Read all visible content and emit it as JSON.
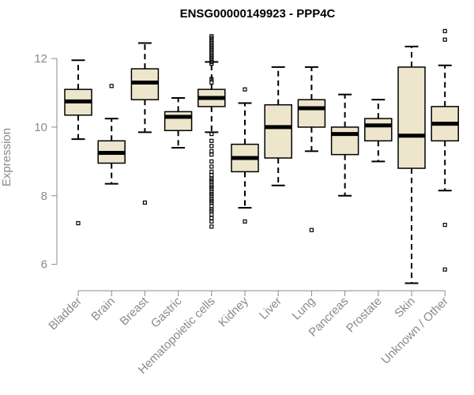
{
  "chart_data": {
    "type": "boxplot",
    "title": "ENSG00000149923 - PPP4C",
    "ylabel": "Expression",
    "xlabel": "",
    "ylim": [
      5.3,
      12.9
    ],
    "yticks": [
      6,
      8,
      10,
      12
    ],
    "box_fill": "#ede6cc",
    "box_stroke": "#000000",
    "axis_color": "#8a8a8a",
    "categories": [
      "Bladder",
      "Brain",
      "Breast",
      "Gastric",
      "Hematopoietic cells",
      "Kidney",
      "Liver",
      "Lung",
      "Pancreas",
      "Prostate",
      "Skin",
      "Unknown / Other"
    ],
    "boxes": [
      {
        "whisker_low": 9.65,
        "q1": 10.35,
        "median": 10.75,
        "q3": 11.1,
        "whisker_high": 11.95,
        "outliers": [
          7.2
        ]
      },
      {
        "whisker_low": 8.35,
        "q1": 8.95,
        "median": 9.25,
        "q3": 9.6,
        "whisker_high": 10.25,
        "outliers": [
          11.2
        ]
      },
      {
        "whisker_low": 9.85,
        "q1": 10.8,
        "median": 11.3,
        "q3": 11.7,
        "whisker_high": 12.45,
        "outliers": [
          7.8
        ]
      },
      {
        "whisker_low": 9.4,
        "q1": 9.9,
        "median": 10.3,
        "q3": 10.45,
        "whisker_high": 10.85,
        "outliers": []
      },
      {
        "whisker_low": 9.85,
        "q1": 10.6,
        "median": 10.85,
        "q3": 11.1,
        "whisker_high": 11.9,
        "outliers": [
          12.65,
          12.6,
          12.55,
          12.5,
          12.45,
          12.4,
          12.35,
          12.3,
          12.25,
          12.2,
          12.15,
          12.1,
          12.05,
          12.0,
          11.95,
          11.9,
          11.85,
          11.4,
          11.3,
          9.8,
          9.6,
          9.45,
          9.3,
          9.2,
          9.0,
          8.85,
          8.7,
          8.6,
          8.5,
          8.45,
          8.4,
          8.3,
          8.25,
          8.2,
          8.1,
          8.05,
          8.0,
          7.9,
          7.85,
          7.8,
          7.7,
          7.6,
          7.55,
          7.45,
          7.35,
          7.25,
          7.1
        ]
      },
      {
        "whisker_low": 7.65,
        "q1": 8.7,
        "median": 9.1,
        "q3": 9.5,
        "whisker_high": 10.7,
        "outliers": [
          11.1,
          7.25
        ]
      },
      {
        "whisker_low": 8.3,
        "q1": 9.1,
        "median": 10.0,
        "q3": 10.65,
        "whisker_high": 11.75,
        "outliers": []
      },
      {
        "whisker_low": 9.3,
        "q1": 10.0,
        "median": 10.55,
        "q3": 10.8,
        "whisker_high": 11.75,
        "outliers": [
          7.0
        ]
      },
      {
        "whisker_low": 8.0,
        "q1": 9.2,
        "median": 9.8,
        "q3": 10.0,
        "whisker_high": 10.95,
        "outliers": []
      },
      {
        "whisker_low": 9.0,
        "q1": 9.6,
        "median": 10.05,
        "q3": 10.25,
        "whisker_high": 10.8,
        "outliers": []
      },
      {
        "whisker_low": 5.45,
        "q1": 8.8,
        "median": 9.75,
        "q3": 11.75,
        "whisker_high": 12.35,
        "outliers": []
      },
      {
        "whisker_low": 8.15,
        "q1": 9.6,
        "median": 10.1,
        "q3": 10.6,
        "whisker_high": 11.8,
        "outliers": [
          12.8,
          12.55,
          7.15,
          5.85
        ]
      }
    ]
  }
}
